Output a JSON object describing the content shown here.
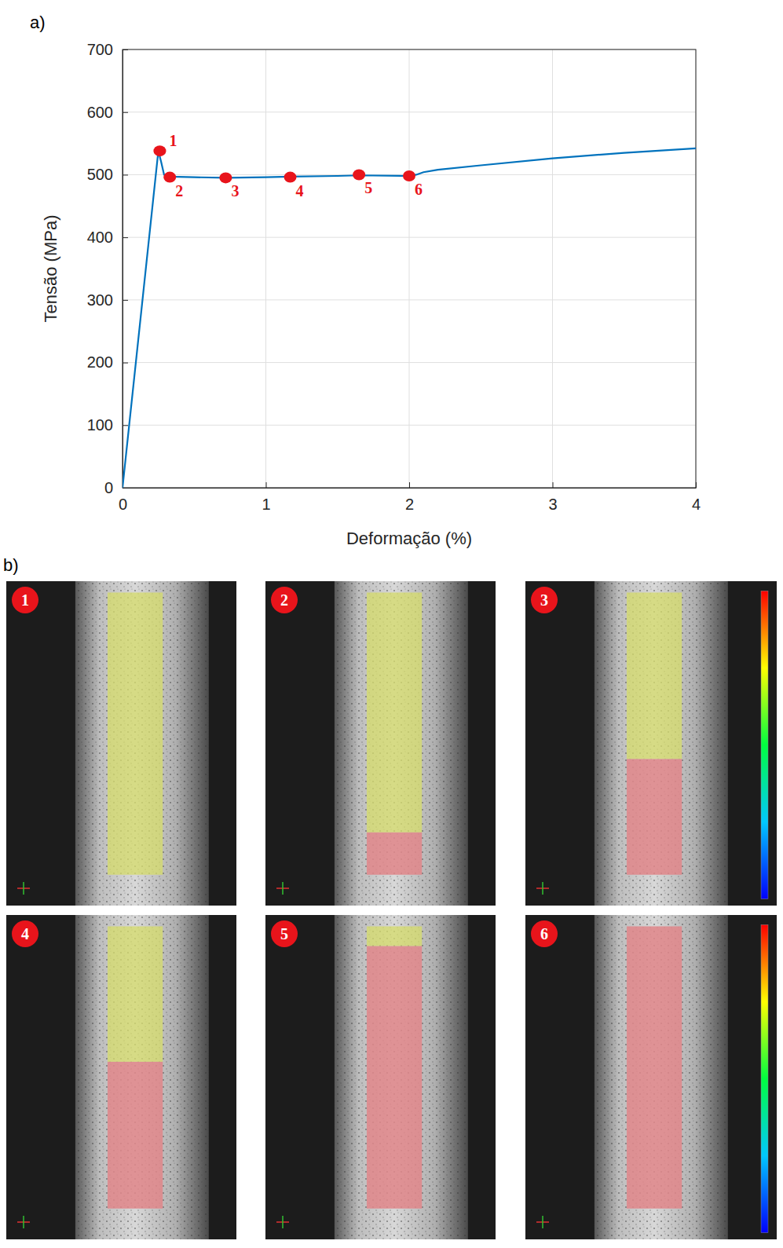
{
  "chart_data": {
    "type": "line",
    "panel_label": "a)",
    "x_label": "Deformação (%)",
    "y_label": "Tensão (MPa)",
    "x": [
      0,
      0.25,
      0.27,
      0.29,
      0.33,
      0.5,
      0.72,
      1.0,
      1.17,
      1.5,
      1.65,
      2.0,
      2.05,
      2.1,
      2.2,
      2.5,
      3.0,
      3.5,
      4.0
    ],
    "values": [
      0,
      538,
      520,
      500,
      497,
      496,
      495,
      496,
      497,
      498,
      499,
      498,
      500,
      504,
      508,
      515,
      526,
      535,
      542
    ],
    "color": "#0072bd",
    "xlim": [
      0,
      4
    ],
    "ylim": [
      0,
      700
    ],
    "xticks": [
      0,
      1,
      2,
      3,
      4
    ],
    "yticks": [
      0,
      100,
      200,
      300,
      400,
      500,
      600,
      700
    ],
    "grid": true,
    "annotations": [
      {
        "x": 0.26,
        "y": 538,
        "text": "1"
      },
      {
        "x": 0.33,
        "y": 496,
        "text": "2"
      },
      {
        "x": 0.72,
        "y": 495,
        "text": "3"
      },
      {
        "x": 1.17,
        "y": 496,
        "text": "4"
      },
      {
        "x": 1.65,
        "y": 500,
        "text": "5"
      },
      {
        "x": 2.0,
        "y": 498,
        "text": "6"
      }
    ]
  },
  "figure_b": {
    "label": "b)",
    "panels": [
      {
        "number": "1",
        "transformed_fraction": 0
      },
      {
        "number": "2",
        "transformed_fraction": 0.15
      },
      {
        "number": "3",
        "transformed_fraction": 0.41
      },
      {
        "number": "4",
        "transformed_fraction": 0.52
      },
      {
        "number": "5",
        "transformed_fraction": 0.93
      },
      {
        "number": "6",
        "transformed_fraction": 1
      }
    ]
  }
}
